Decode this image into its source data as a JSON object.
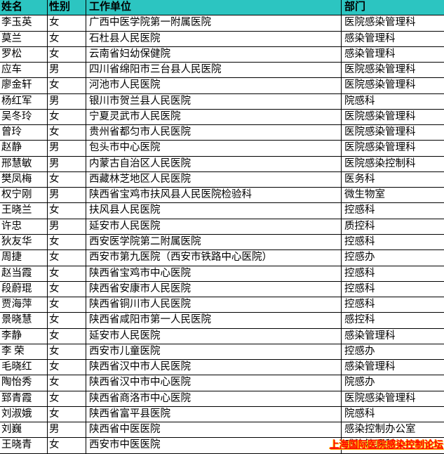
{
  "table": {
    "columns": [
      {
        "key": "name",
        "label": "姓名"
      },
      {
        "key": "gender",
        "label": "性别"
      },
      {
        "key": "organization",
        "label": "工作单位"
      },
      {
        "key": "department",
        "label": "部门"
      }
    ],
    "rows": [
      {
        "name": "李玉英",
        "gender": "女",
        "organization": "广西中医学院第一附属医院",
        "department": "医院感染管理科"
      },
      {
        "name": "莫兰",
        "gender": "女",
        "organization": "石杜县人民医院",
        "department": "感染管理科"
      },
      {
        "name": "罗松",
        "gender": "女",
        "organization": "云南省妇幼保健院",
        "department": "感染管理科"
      },
      {
        "name": "应车",
        "gender": "男",
        "organization": "四川省绵阳市三台县人民医院",
        "department": "医院感染管理科"
      },
      {
        "name": "廖金轩",
        "gender": "女",
        "organization": "河池市人民医院",
        "department": "医院感染管理科"
      },
      {
        "name": "杨红军",
        "gender": "男",
        "organization": "银川市贺兰县人民医院",
        "department": "院感科"
      },
      {
        "name": "吴冬玲",
        "gender": "女",
        "organization": "宁夏灵武市人民医院",
        "department": "医院感染管理科"
      },
      {
        "name": "曾玲",
        "gender": "女",
        "organization": "贵州省都匀市人民医院",
        "department": "医院感染管理科"
      },
      {
        "name": "赵静",
        "gender": "男",
        "organization": "包头市中心医院",
        "department": "医院感染管理科"
      },
      {
        "name": "邢慧敏",
        "gender": "男",
        "organization": "内蒙古自治区人民医院",
        "department": "医院感染控制科"
      },
      {
        "name": "樊凤梅",
        "gender": "女",
        "organization": "西藏林芝地区人民医院",
        "department": "医务科"
      },
      {
        "name": "权宁刚",
        "gender": "男",
        "organization": "陕西省宝鸡市扶风县人民医院检验科",
        "department": "微生物室"
      },
      {
        "name": "王晓兰",
        "gender": "女",
        "organization": "扶风县人民医院",
        "department": "控感科"
      },
      {
        "name": "许忠",
        "gender": "男",
        "organization": "延安市人民医院",
        "department": "质控科"
      },
      {
        "name": "狄友华",
        "gender": "女",
        "organization": "西安医学院第二附属医院",
        "department": "控感科"
      },
      {
        "name": "周捷",
        "gender": "女",
        "organization": "西安市第九医院（西安市铁路中心医院）",
        "department": "控感办"
      },
      {
        "name": "赵当霞",
        "gender": "女",
        "organization": "陕西省宝鸡市中心医院",
        "department": "控感科"
      },
      {
        "name": "段蔚琨",
        "gender": "女",
        "organization": "陕西省安康市人民医院",
        "department": "控感科"
      },
      {
        "name": "贾海萍",
        "gender": "女",
        "organization": "陕西省铜川市人民医院",
        "department": "控感科"
      },
      {
        "name": "景晓慧",
        "gender": "女",
        "organization": "陕西省咸阳市第一人民医院",
        "department": "感控科"
      },
      {
        "name": "李静",
        "gender": "女",
        "organization": "延安市人民医院",
        "department": "感染管理科"
      },
      {
        "name": "李 荣",
        "gender": "女",
        "organization": "西安市儿童医院",
        "department": "控感办"
      },
      {
        "name": "毛晓红",
        "gender": "女",
        "organization": "陕西省汉中市人民医院",
        "department": "感染管理科"
      },
      {
        "name": "陶怡秀",
        "gender": "女",
        "organization": "陕西省汉中市中心医院",
        "department": "院感办"
      },
      {
        "name": "郅青霞",
        "gender": "女",
        "organization": "陕西省商洛市中心医院",
        "department": "医院感染管理科"
      },
      {
        "name": "刘淑娥",
        "gender": "女",
        "organization": "陕西省富平县医院",
        "department": "院感科"
      },
      {
        "name": "刘巍",
        "gender": "男",
        "organization": "陕西省中医医院",
        "department": "感染控制办公室"
      },
      {
        "name": "王晓青",
        "gender": "女",
        "organization": "西安市中医医院",
        "department": "感染管理科"
      }
    ]
  },
  "watermark": {
    "text": "上海国际医院感染控制论坛"
  },
  "colors": {
    "header_bg": "#2cc5c1",
    "grid_line": "#000000",
    "text": "#000000",
    "row_bg": "#ffffff",
    "watermark_red": "#ff0000",
    "watermark_glow": "#ffb400"
  }
}
